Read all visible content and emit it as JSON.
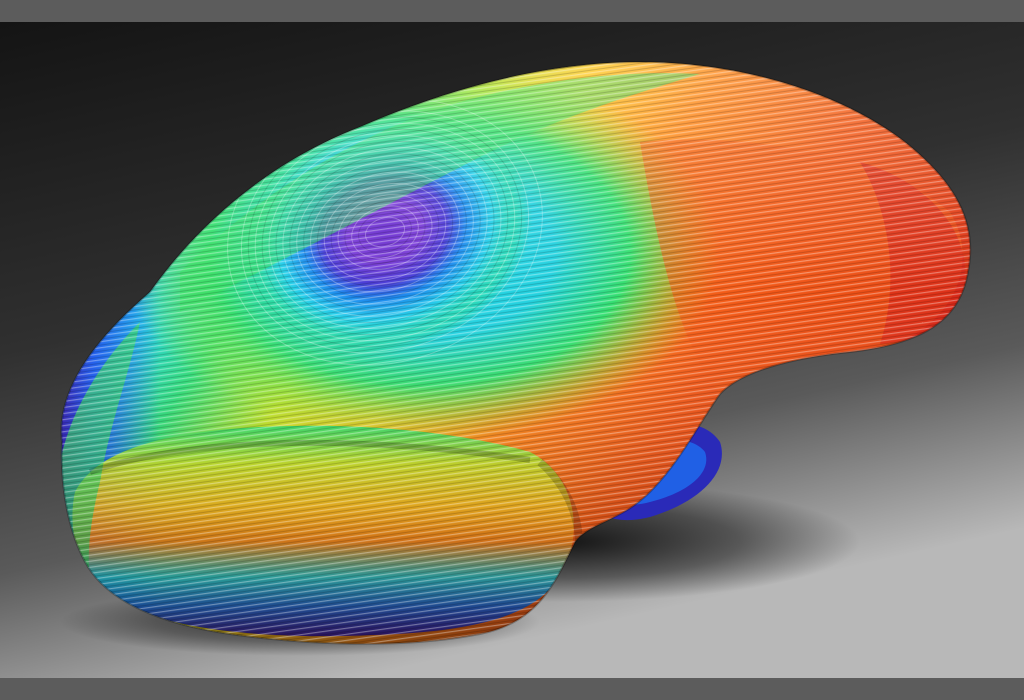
{
  "scene": {
    "background": {
      "top_color": "#161616",
      "mid_color": "#3a3a3a",
      "bottom_color": "#b4b4b4",
      "frame_band_color": "#5c5c5c"
    },
    "object": {
      "description_name": "rainbow-contour-blob",
      "palette": [
        "#3a10a8",
        "#5a2cc4",
        "#7b3fd6",
        "#1e5ef0",
        "#1fb6f0",
        "#28d6e8",
        "#2ee07a",
        "#7ee62a",
        "#e8e22a",
        "#ffb020",
        "#ff6a1a",
        "#e83214",
        "#c81a10"
      ],
      "contour_line_color": "#ffffff"
    }
  }
}
